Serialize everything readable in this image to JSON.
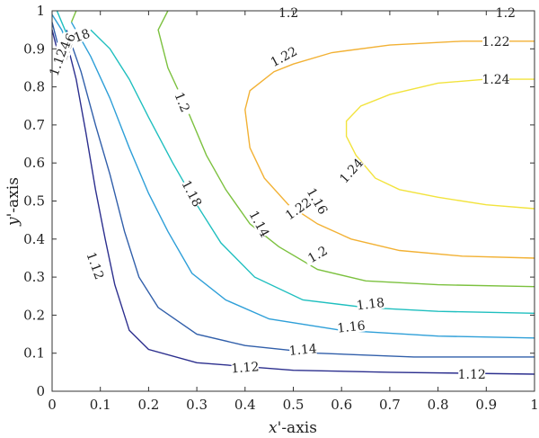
{
  "chart_data": {
    "type": "contour",
    "xlabel_var": "x",
    "xlabel_rest": "'-axis",
    "ylabel_var": "y",
    "ylabel_rest": "'-axis",
    "xlim": [
      0,
      1
    ],
    "ylim": [
      0,
      1
    ],
    "x_ticks": [
      "0",
      "0.1",
      "0.2",
      "0.3",
      "0.4",
      "0.5",
      "0.6",
      "0.7",
      "0.8",
      "0.9",
      "1"
    ],
    "y_ticks": [
      "0",
      "0.1",
      "0.2",
      "0.3",
      "0.4",
      "0.5",
      "0.6",
      "0.7",
      "0.8",
      "0.9",
      "1"
    ],
    "grid": false,
    "colormap": "viridis",
    "contours": [
      {
        "level": "1.12",
        "color": "#2c2f8e",
        "points": [
          [
            0.03,
            0.92
          ],
          [
            0.05,
            0.82
          ],
          [
            0.07,
            0.68
          ],
          [
            0.09,
            0.53
          ],
          [
            0.11,
            0.4
          ],
          [
            0.13,
            0.28
          ],
          [
            0.16,
            0.16
          ],
          [
            0.2,
            0.11
          ],
          [
            0.3,
            0.075
          ],
          [
            0.5,
            0.055
          ],
          [
            0.7,
            0.05
          ],
          [
            1.0,
            0.045
          ]
        ],
        "labels": [
          {
            "text": "1.12",
            "x": 0.09,
            "y": 0.33,
            "angle": 70
          },
          {
            "text": "1.12",
            "x": 0.4,
            "y": 0.063,
            "angle": -4
          },
          {
            "text": "1.12",
            "x": 0.87,
            "y": 0.045,
            "angle": 0
          }
        ]
      },
      {
        "level": "1.14",
        "color": "#315faa",
        "points": [
          [
            0.03,
            0.95
          ],
          [
            0.06,
            0.84
          ],
          [
            0.09,
            0.7
          ],
          [
            0.12,
            0.57
          ],
          [
            0.15,
            0.42
          ],
          [
            0.18,
            0.3
          ],
          [
            0.22,
            0.22
          ],
          [
            0.3,
            0.15
          ],
          [
            0.4,
            0.12
          ],
          [
            0.55,
            0.1
          ],
          [
            0.75,
            0.09
          ],
          [
            1.0,
            0.09
          ]
        ],
        "labels": [
          {
            "text": "1.14",
            "x": 0.43,
            "y": 0.44,
            "angle": 62
          },
          {
            "text": "1.14",
            "x": 0.52,
            "y": 0.11,
            "angle": -5
          }
        ]
      },
      {
        "level": "1.16",
        "color": "#2e9fd8",
        "points": [
          [
            0.04,
            0.97
          ],
          [
            0.08,
            0.88
          ],
          [
            0.12,
            0.77
          ],
          [
            0.16,
            0.64
          ],
          [
            0.2,
            0.52
          ],
          [
            0.24,
            0.42
          ],
          [
            0.29,
            0.31
          ],
          [
            0.36,
            0.24
          ],
          [
            0.45,
            0.19
          ],
          [
            0.6,
            0.16
          ],
          [
            0.8,
            0.145
          ],
          [
            1.0,
            0.14
          ]
        ],
        "labels": [
          {
            "text": "1.16",
            "x": 0.55,
            "y": 0.5,
            "angle": 60
          },
          {
            "text": "1.16",
            "x": 0.62,
            "y": 0.17,
            "angle": -6
          }
        ]
      },
      {
        "level": "1.18",
        "color": "#1fbfbf",
        "points": [
          [
            0.08,
            0.95
          ],
          [
            0.12,
            0.9
          ],
          [
            0.16,
            0.82
          ],
          [
            0.2,
            0.72
          ],
          [
            0.25,
            0.6
          ],
          [
            0.3,
            0.49
          ],
          [
            0.35,
            0.39
          ],
          [
            0.42,
            0.3
          ],
          [
            0.52,
            0.24
          ],
          [
            0.65,
            0.22
          ],
          [
            0.8,
            0.21
          ],
          [
            1.0,
            0.205
          ]
        ],
        "labels": [
          {
            "text": "1.18",
            "x": 0.29,
            "y": 0.52,
            "angle": 62
          },
          {
            "text": "1.18",
            "x": 0.66,
            "y": 0.23,
            "angle": -7
          }
        ]
      },
      {
        "level": "1.2",
        "color": "#7cc13f",
        "points": [
          [
            0.04,
            0.97
          ],
          [
            0.05,
            1.0
          ]
        ],
        "labels": []
      },
      {
        "level": "1.2",
        "color": "#7cc13f",
        "points": [
          [
            0.24,
            1.0
          ],
          [
            0.22,
            0.95
          ],
          [
            0.24,
            0.85
          ],
          [
            0.28,
            0.74
          ],
          [
            0.32,
            0.62
          ],
          [
            0.36,
            0.53
          ],
          [
            0.41,
            0.44
          ],
          [
            0.47,
            0.38
          ],
          [
            0.55,
            0.32
          ],
          [
            0.65,
            0.29
          ],
          [
            0.8,
            0.28
          ],
          [
            1.0,
            0.275
          ]
        ],
        "labels": [
          {
            "text": "1.2",
            "x": 0.27,
            "y": 0.76,
            "angle": 68
          },
          {
            "text": "1.2",
            "x": 0.55,
            "y": 0.36,
            "angle": -30
          },
          {
            "text": "1.2",
            "x": 0.49,
            "y": 0.995,
            "angle": 0
          },
          {
            "text": "1.2",
            "x": 0.94,
            "y": 0.995,
            "angle": 0
          }
        ]
      },
      {
        "level": "1.22",
        "color": "#f2b134",
        "points": [
          [
            1.0,
            0.92
          ],
          [
            0.85,
            0.92
          ],
          [
            0.7,
            0.91
          ],
          [
            0.58,
            0.89
          ],
          [
            0.5,
            0.86
          ],
          [
            0.46,
            0.84
          ],
          [
            0.41,
            0.79
          ],
          [
            0.4,
            0.74
          ],
          [
            0.41,
            0.64
          ],
          [
            0.44,
            0.56
          ],
          [
            0.49,
            0.49
          ],
          [
            0.55,
            0.44
          ],
          [
            0.62,
            0.4
          ],
          [
            0.72,
            0.37
          ],
          [
            0.85,
            0.355
          ],
          [
            1.0,
            0.35
          ]
        ],
        "labels": [
          {
            "text": "1.22",
            "x": 0.48,
            "y": 0.88,
            "angle": -28
          },
          {
            "text": "1.22",
            "x": 0.51,
            "y": 0.48,
            "angle": -35
          },
          {
            "text": "1.22",
            "x": 0.92,
            "y": 0.92,
            "angle": 0
          }
        ]
      },
      {
        "level": "1.24",
        "color": "#f2e33d",
        "points": [
          [
            1.0,
            0.82
          ],
          [
            0.9,
            0.82
          ],
          [
            0.8,
            0.81
          ],
          [
            0.7,
            0.78
          ],
          [
            0.64,
            0.75
          ],
          [
            0.61,
            0.71
          ],
          [
            0.61,
            0.67
          ],
          [
            0.63,
            0.62
          ],
          [
            0.67,
            0.56
          ],
          [
            0.72,
            0.53
          ],
          [
            0.8,
            0.51
          ],
          [
            0.9,
            0.49
          ],
          [
            1.0,
            0.48
          ]
        ],
        "labels": [
          {
            "text": "1.24",
            "x": 0.92,
            "y": 0.82,
            "angle": 0
          },
          {
            "text": "1.24",
            "x": 0.62,
            "y": 0.58,
            "angle": -48
          }
        ]
      },
      {
        "level": "1.18",
        "color": "#1fbfbf",
        "points": [
          [
            0.01,
            1.0
          ],
          [
            0.02,
            0.97
          ],
          [
            0.03,
            0.94
          ]
        ],
        "labels": [
          {
            "text": "1.18",
            "x": 0.05,
            "y": 0.93,
            "angle": -20
          }
        ]
      },
      {
        "level": "1.16",
        "color": "#2e9fd8",
        "points": [
          [
            0.0,
            0.99
          ],
          [
            0.02,
            0.95
          ],
          [
            0.03,
            0.92
          ]
        ],
        "labels": [
          {
            "text": "1.16",
            "x": 0.03,
            "y": 0.905,
            "angle": -70
          }
        ]
      },
      {
        "level": "1.14",
        "color": "#315faa",
        "points": [
          [
            0.0,
            0.97
          ],
          [
            0.01,
            0.92
          ],
          [
            0.02,
            0.89
          ]
        ],
        "labels": [
          {
            "text": "1.14",
            "x": 0.02,
            "y": 0.885,
            "angle": -70
          }
        ]
      },
      {
        "level": "1.12",
        "color": "#2c2f8e",
        "points": [
          [
            0.0,
            0.95
          ],
          [
            0.01,
            0.9
          ],
          [
            0.015,
            0.87
          ]
        ],
        "labels": [
          {
            "text": "1.12",
            "x": 0.012,
            "y": 0.865,
            "angle": -70
          }
        ]
      }
    ]
  }
}
